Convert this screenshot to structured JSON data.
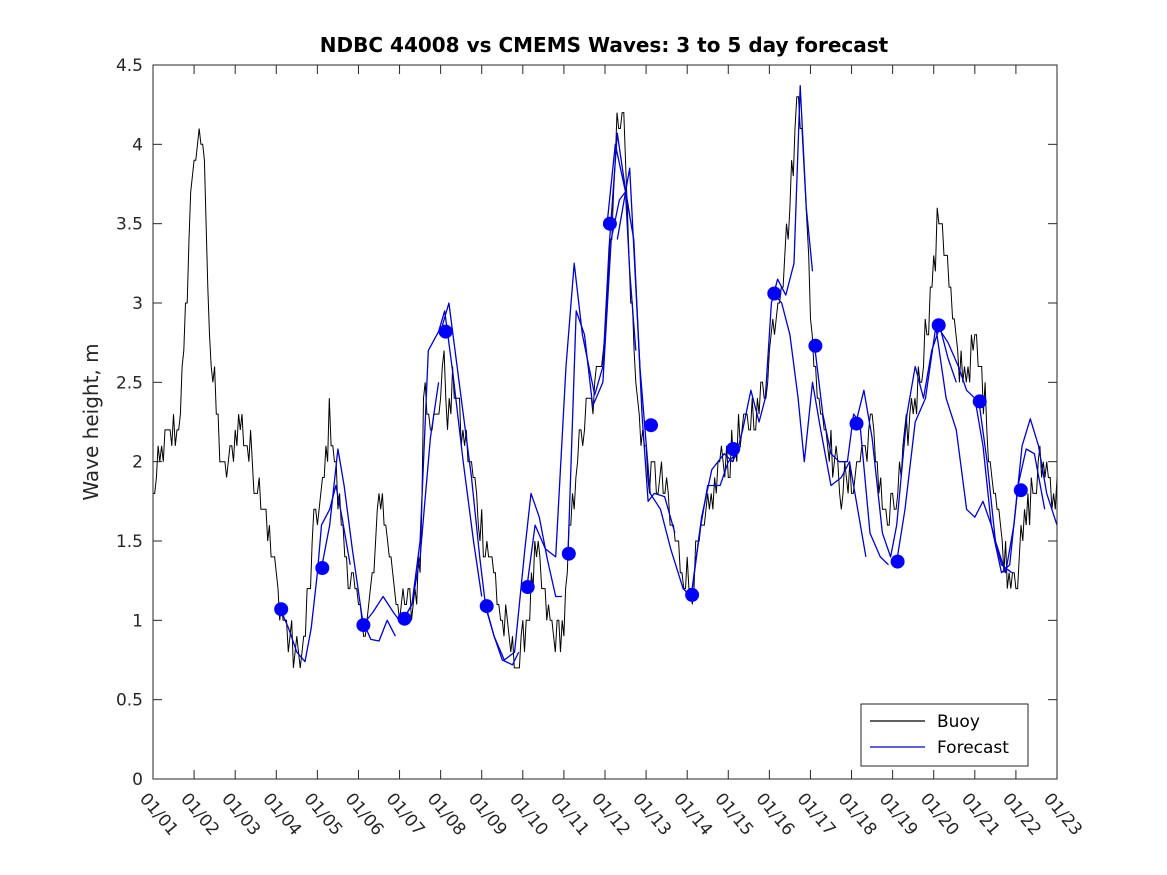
{
  "chart_data": {
    "type": "line",
    "title": "NDBC 44008 vs CMEMS Waves: 3 to 5 day forecast",
    "xlabel": "",
    "ylabel": "Wave height, m",
    "xlim": [
      0,
      22
    ],
    "ylim": [
      0,
      4.5
    ],
    "yticks": [
      0,
      0.5,
      1,
      1.5,
      2,
      2.5,
      3,
      3.5,
      4,
      4.5
    ],
    "ytick_labels": [
      "0",
      "0.5",
      "1",
      "1.5",
      "2",
      "2.5",
      "3",
      "3.5",
      "4",
      "4.5"
    ],
    "xtick_labels": [
      "01/01",
      "01/02",
      "01/03",
      "01/04",
      "01/05",
      "01/06",
      "01/07",
      "01/08",
      "01/09",
      "01/10",
      "01/11",
      "01/12",
      "01/13",
      "01/14",
      "01/15",
      "01/16",
      "01/17",
      "01/18",
      "01/19",
      "01/20",
      "01/21",
      "01/22",
      "01/23"
    ],
    "legend": {
      "position": "bottom-right",
      "entries": [
        {
          "label": "Buoy",
          "color": "#000000"
        },
        {
          "label": "Forecast",
          "color": "#0000cc"
        }
      ]
    },
    "colors": {
      "buoy": "#000000",
      "forecast": "#0000cc",
      "marker": "#0000ff"
    },
    "buoy_anchors": [
      [
        0,
        1.8
      ],
      [
        0.3,
        2.1
      ],
      [
        0.6,
        2.2
      ],
      [
        0.75,
        2.6
      ],
      [
        0.9,
        3.6
      ],
      [
        1.0,
        4.0
      ],
      [
        1.1,
        3.9
      ],
      [
        1.2,
        4.1
      ],
      [
        1.3,
        3.5
      ],
      [
        1.4,
        2.7
      ],
      [
        1.55,
        2.3
      ],
      [
        1.7,
        1.9
      ],
      [
        1.85,
        2.0
      ],
      [
        2.0,
        2.2
      ],
      [
        2.1,
        2.3
      ],
      [
        2.3,
        2.1
      ],
      [
        2.5,
        1.9
      ],
      [
        2.75,
        1.7
      ],
      [
        2.9,
        1.4
      ],
      [
        3.1,
        1.1
      ],
      [
        3.3,
        0.9
      ],
      [
        3.45,
        0.8
      ],
      [
        3.6,
        0.7
      ],
      [
        3.8,
        1.2
      ],
      [
        3.95,
        1.7
      ],
      [
        4.1,
        1.7
      ],
      [
        4.3,
        2.3
      ],
      [
        4.4,
        2.1
      ],
      [
        4.5,
        1.8
      ],
      [
        4.7,
        1.4
      ],
      [
        5.0,
        1.05
      ],
      [
        5.2,
        1.0
      ],
      [
        5.4,
        1.4
      ],
      [
        5.55,
        1.85
      ],
      [
        5.7,
        1.5
      ],
      [
        5.9,
        1.2
      ],
      [
        6.1,
        1.05
      ],
      [
        6.3,
        1.1
      ],
      [
        6.5,
        1.3
      ],
      [
        6.6,
        2.6
      ],
      [
        6.75,
        2.3
      ],
      [
        6.9,
        2.2
      ],
      [
        7.05,
        2.6
      ],
      [
        7.2,
        2.3
      ],
      [
        7.35,
        2.5
      ],
      [
        7.5,
        2.2
      ],
      [
        7.7,
        2.0
      ],
      [
        7.9,
        1.7
      ],
      [
        8.1,
        1.5
      ],
      [
        8.3,
        1.3
      ],
      [
        8.5,
        1.0
      ],
      [
        8.7,
        0.85
      ],
      [
        8.9,
        0.72
      ],
      [
        9.1,
        1.0
      ],
      [
        9.3,
        1.4
      ],
      [
        9.45,
        1.25
      ],
      [
        9.6,
        1.0
      ],
      [
        9.8,
        0.9
      ],
      [
        10.0,
        1.0
      ],
      [
        10.15,
        1.5
      ],
      [
        10.3,
        2.0
      ],
      [
        10.45,
        2.2
      ],
      [
        10.6,
        2.3
      ],
      [
        10.8,
        2.5
      ],
      [
        11.0,
        2.9
      ],
      [
        11.15,
        3.5
      ],
      [
        11.3,
        4.1
      ],
      [
        11.4,
        4.3
      ],
      [
        11.5,
        3.9
      ],
      [
        11.6,
        3.2
      ],
      [
        11.75,
        2.5
      ],
      [
        11.9,
        2.15
      ],
      [
        12.1,
        1.9
      ],
      [
        12.3,
        1.9
      ],
      [
        12.5,
        1.75
      ],
      [
        12.7,
        1.5
      ],
      [
        12.9,
        1.3
      ],
      [
        13.1,
        1.2
      ],
      [
        13.25,
        1.4
      ],
      [
        13.4,
        1.5
      ],
      [
        13.6,
        1.75
      ],
      [
        13.8,
        2.0
      ],
      [
        14.0,
        2.0
      ],
      [
        14.2,
        2.1
      ],
      [
        14.4,
        2.2
      ],
      [
        14.6,
        2.3
      ],
      [
        14.75,
        2.35
      ],
      [
        14.9,
        2.5
      ],
      [
        15.1,
        2.9
      ],
      [
        15.3,
        3.2
      ],
      [
        15.5,
        3.6
      ],
      [
        15.6,
        4.0
      ],
      [
        15.7,
        4.35
      ],
      [
        15.8,
        4.2
      ],
      [
        15.9,
        3.5
      ],
      [
        16.0,
        3.0
      ],
      [
        16.1,
        2.6
      ],
      [
        16.3,
        2.3
      ],
      [
        16.5,
        2.1
      ],
      [
        16.7,
        1.9
      ],
      [
        16.9,
        1.8
      ],
      [
        17.1,
        1.95
      ],
      [
        17.3,
        2.1
      ],
      [
        17.5,
        2.2
      ],
      [
        17.7,
        1.9
      ],
      [
        17.85,
        1.6
      ],
      [
        18.0,
        1.7
      ],
      [
        18.2,
        1.9
      ],
      [
        18.4,
        2.3
      ],
      [
        18.6,
        2.45
      ],
      [
        18.8,
        2.8
      ],
      [
        19.0,
        3.2
      ],
      [
        19.15,
        3.6
      ],
      [
        19.3,
        3.3
      ],
      [
        19.45,
        2.9
      ],
      [
        19.6,
        2.6
      ],
      [
        19.8,
        2.6
      ],
      [
        20.0,
        2.7
      ],
      [
        20.2,
        2.5
      ],
      [
        20.4,
        2.0
      ],
      [
        20.6,
        1.6
      ],
      [
        20.8,
        1.3
      ],
      [
        21.0,
        1.3
      ],
      [
        21.15,
        1.5
      ],
      [
        21.3,
        1.7
      ],
      [
        21.5,
        1.9
      ],
      [
        21.7,
        2.0
      ],
      [
        21.85,
        1.9
      ],
      [
        22.0,
        1.75
      ]
    ],
    "forecast_segments": [
      [
        [
          3.1,
          1.07
        ],
        [
          3.3,
          0.95
        ],
        [
          3.5,
          0.8
        ],
        [
          3.7,
          0.74
        ],
        [
          3.85,
          0.95
        ],
        [
          4.0,
          1.3
        ],
        [
          4.1,
          1.6
        ],
        [
          4.3,
          1.7
        ],
        [
          4.45,
          1.85
        ],
        [
          4.6,
          1.65
        ],
        [
          4.8,
          1.35
        ]
      ],
      [
        [
          4.1,
          1.33
        ],
        [
          4.3,
          1.6
        ],
        [
          4.5,
          2.08
        ],
        [
          4.65,
          1.85
        ],
        [
          4.85,
          1.45
        ],
        [
          5.1,
          1.0
        ],
        [
          5.3,
          0.88
        ],
        [
          5.5,
          0.87
        ],
        [
          5.7,
          1.0
        ],
        [
          5.9,
          0.9
        ]
      ],
      [
        [
          5.1,
          0.97
        ],
        [
          5.35,
          1.05
        ],
        [
          5.6,
          1.15
        ],
        [
          5.85,
          1.05
        ],
        [
          6.05,
          0.98
        ],
        [
          6.3,
          1.1
        ],
        [
          6.5,
          1.4
        ],
        [
          6.75,
          2.15
        ],
        [
          6.95,
          2.5
        ]
      ],
      [
        [
          6.1,
          1.01
        ],
        [
          6.3,
          1.1
        ],
        [
          6.5,
          1.5
        ],
        [
          6.7,
          2.7
        ],
        [
          6.95,
          2.82
        ],
        [
          7.1,
          2.95
        ],
        [
          7.3,
          2.55
        ],
        [
          7.55,
          2.0
        ],
        [
          7.8,
          1.5
        ],
        [
          8.0,
          1.15
        ]
      ],
      [
        [
          7.0,
          2.82
        ],
        [
          7.2,
          3.0
        ],
        [
          7.5,
          2.4
        ],
        [
          7.75,
          1.9
        ],
        [
          7.95,
          1.4
        ],
        [
          8.1,
          1.08
        ],
        [
          8.3,
          0.9
        ],
        [
          8.5,
          0.75
        ],
        [
          8.75,
          0.72
        ],
        [
          8.9,
          0.8
        ]
      ],
      [
        [
          8.1,
          1.09
        ],
        [
          8.3,
          0.9
        ],
        [
          8.55,
          0.75
        ],
        [
          8.8,
          0.8
        ],
        [
          9.05,
          1.45
        ],
        [
          9.2,
          1.8
        ],
        [
          9.4,
          1.65
        ],
        [
          9.6,
          1.38
        ],
        [
          9.8,
          1.15
        ],
        [
          9.95,
          1.15
        ]
      ],
      [
        [
          9.1,
          1.21
        ],
        [
          9.3,
          1.6
        ],
        [
          9.55,
          1.45
        ],
        [
          9.8,
          1.4
        ],
        [
          10.05,
          2.6
        ],
        [
          10.25,
          3.25
        ],
        [
          10.45,
          2.8
        ],
        [
          10.75,
          2.42
        ],
        [
          10.95,
          2.6
        ],
        [
          11.1,
          3.35
        ],
        [
          11.3,
          4.07
        ],
        [
          11.45,
          3.8
        ],
        [
          11.6,
          3.55
        ]
      ],
      [
        [
          10.1,
          1.42
        ],
        [
          10.3,
          2.95
        ],
        [
          10.5,
          2.8
        ],
        [
          10.7,
          2.35
        ],
        [
          10.95,
          2.5
        ],
        [
          11.15,
          3.4
        ],
        [
          11.35,
          3.65
        ],
        [
          11.5,
          3.7
        ],
        [
          11.6,
          3.2
        ],
        [
          11.75,
          2.7
        ]
      ],
      [
        [
          11.05,
          3.5
        ],
        [
          11.25,
          4.0
        ],
        [
          11.5,
          3.7
        ],
        [
          11.7,
          3.4
        ],
        [
          11.9,
          2.3
        ],
        [
          12.05,
          1.75
        ],
        [
          12.2,
          1.8
        ],
        [
          12.45,
          1.78
        ],
        [
          12.7,
          1.55
        ]
      ],
      [
        [
          11.3,
          3.4
        ],
        [
          11.6,
          3.85
        ],
        [
          11.85,
          2.6
        ],
        [
          12.1,
          1.8
        ],
        [
          12.35,
          1.7
        ],
        [
          12.6,
          1.45
        ],
        [
          12.9,
          1.2
        ],
        [
          13.1,
          1.15
        ],
        [
          13.35,
          1.65
        ],
        [
          13.6,
          1.95
        ],
        [
          13.9,
          2.05
        ],
        [
          14.1,
          2.0
        ],
        [
          14.3,
          2.1
        ]
      ],
      [
        [
          13.1,
          1.16
        ],
        [
          13.3,
          1.55
        ],
        [
          13.5,
          1.85
        ],
        [
          13.8,
          1.85
        ],
        [
          14.0,
          2.0
        ],
        [
          14.2,
          2.05
        ],
        [
          14.35,
          2.2
        ],
        [
          14.55,
          2.45
        ],
        [
          14.75,
          2.25
        ],
        [
          14.9,
          2.4
        ],
        [
          15.05,
          3.0
        ],
        [
          15.2,
          3.15
        ],
        [
          15.4,
          3.05
        ],
        [
          15.6,
          3.25
        ],
        [
          15.75,
          4.37
        ],
        [
          15.9,
          3.6
        ],
        [
          16.05,
          3.2
        ]
      ],
      [
        [
          15.1,
          3.06
        ],
        [
          15.3,
          3.0
        ],
        [
          15.5,
          2.8
        ],
        [
          15.7,
          2.4
        ],
        [
          15.85,
          2.0
        ],
        [
          16.05,
          2.5
        ],
        [
          16.25,
          2.2
        ],
        [
          16.5,
          1.85
        ],
        [
          16.75,
          1.9
        ],
        [
          16.95,
          2.0
        ],
        [
          17.15,
          1.7
        ],
        [
          17.35,
          1.4
        ]
      ],
      [
        [
          16.1,
          2.73
        ],
        [
          16.3,
          2.3
        ],
        [
          16.5,
          2.05
        ],
        [
          16.7,
          2.0
        ],
        [
          16.9,
          2.0
        ],
        [
          17.05,
          2.3
        ],
        [
          17.2,
          2.25
        ],
        [
          17.45,
          1.55
        ],
        [
          17.7,
          1.4
        ],
        [
          17.9,
          1.35
        ]
      ],
      [
        [
          17.1,
          2.24
        ],
        [
          17.3,
          2.45
        ],
        [
          17.5,
          2.15
        ],
        [
          17.75,
          1.55
        ],
        [
          17.95,
          1.4
        ],
        [
          18.1,
          1.6
        ],
        [
          18.35,
          2.3
        ],
        [
          18.55,
          2.6
        ],
        [
          18.75,
          2.4
        ],
        [
          18.95,
          2.7
        ],
        [
          19.15,
          2.85
        ],
        [
          19.35,
          2.65
        ],
        [
          19.55,
          2.5
        ]
      ],
      [
        [
          18.1,
          1.37
        ],
        [
          18.3,
          1.7
        ],
        [
          18.55,
          2.25
        ],
        [
          18.8,
          2.4
        ],
        [
          19.05,
          2.85
        ],
        [
          19.3,
          2.4
        ],
        [
          19.55,
          2.2
        ],
        [
          19.8,
          1.7
        ],
        [
          20.0,
          1.65
        ],
        [
          20.2,
          1.75
        ],
        [
          20.4,
          1.6
        ],
        [
          20.65,
          1.35
        ],
        [
          20.9,
          1.3
        ]
      ],
      [
        [
          19.1,
          2.85
        ],
        [
          19.35,
          2.75
        ],
        [
          19.6,
          2.6
        ],
        [
          19.8,
          2.45
        ],
        [
          20.0,
          2.4
        ],
        [
          20.2,
          2.1
        ],
        [
          20.4,
          1.6
        ],
        [
          20.65,
          1.3
        ],
        [
          20.85,
          1.35
        ],
        [
          21.05,
          1.85
        ],
        [
          21.25,
          2.08
        ],
        [
          21.45,
          2.05
        ],
        [
          21.7,
          1.7
        ]
      ],
      [
        [
          20.1,
          2.38
        ],
        [
          20.3,
          2.0
        ],
        [
          20.5,
          1.5
        ],
        [
          20.75,
          1.3
        ],
        [
          20.95,
          1.6
        ],
        [
          21.15,
          2.1
        ],
        [
          21.35,
          2.27
        ],
        [
          21.55,
          2.1
        ],
        [
          21.75,
          1.8
        ],
        [
          22.0,
          1.6
        ]
      ]
    ],
    "forecast_markers": [
      [
        3.12,
        1.07
      ],
      [
        4.12,
        1.33
      ],
      [
        5.12,
        0.97
      ],
      [
        6.12,
        1.01
      ],
      [
        7.12,
        2.82
      ],
      [
        8.12,
        1.09
      ],
      [
        9.12,
        1.21
      ],
      [
        10.12,
        1.42
      ],
      [
        11.12,
        3.5
      ],
      [
        12.12,
        2.23
      ],
      [
        13.12,
        1.16
      ],
      [
        14.12,
        2.08
      ],
      [
        15.12,
        3.06
      ],
      [
        16.12,
        2.73
      ],
      [
        17.12,
        2.24
      ],
      [
        18.12,
        1.37
      ],
      [
        19.12,
        2.86
      ],
      [
        20.12,
        2.38
      ],
      [
        21.12,
        1.82
      ]
    ]
  }
}
